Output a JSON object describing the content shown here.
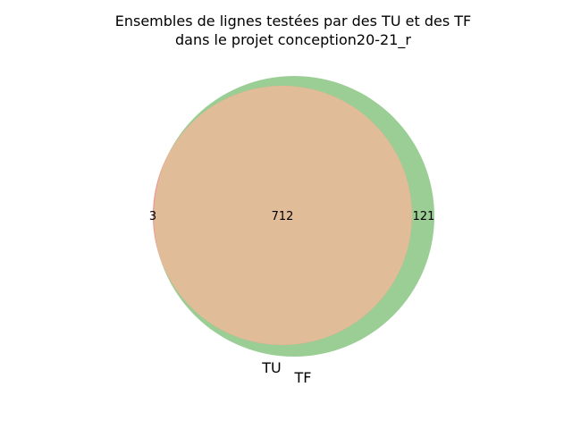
{
  "title": {
    "line1": "Ensembles de lignes testées par des TU et des TF",
    "line2": "dans le projet conception20-21_r"
  },
  "sets": {
    "tu": {
      "label": "TU",
      "color": "#f08080"
    },
    "tf": {
      "label": "TF",
      "color": "#90c98a"
    },
    "overlap": {
      "color": "#e0bd98"
    }
  },
  "counts": {
    "tu_only": "3",
    "both": "712",
    "tf_only": "121"
  }
}
